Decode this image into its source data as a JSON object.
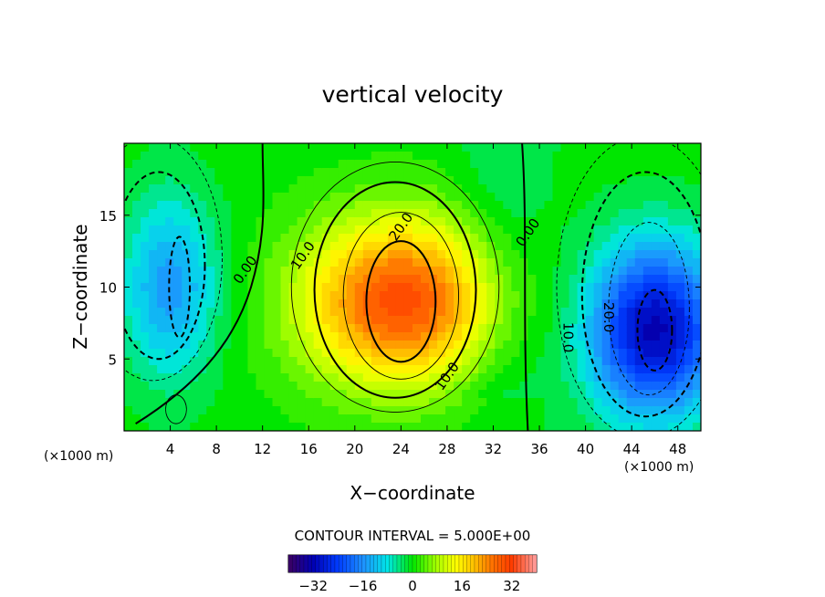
{
  "chart_data": {
    "type": "heatmap",
    "title": "vertical velocity",
    "xlabel": "X−coordinate",
    "ylabel": "Z−coordinate",
    "x_unit_left": "(×1000 m)",
    "x_unit_right": "(×1000 m)",
    "xlim": [
      0,
      50
    ],
    "ylim": [
      0,
      20
    ],
    "x_ticks": [
      4,
      8,
      12,
      16,
      20,
      24,
      28,
      32,
      36,
      40,
      44,
      48
    ],
    "y_ticks": [
      5,
      10,
      15
    ],
    "contour_interval_text": "CONTOUR INTERVAL = 5.000E+00",
    "colorbar": {
      "range": [
        -40,
        40
      ],
      "ticks": [
        -32,
        -16,
        0,
        16,
        32
      ],
      "tick_labels": [
        "−32",
        "−16",
        "0",
        "16",
        "32"
      ]
    },
    "features": [
      {
        "kind": "updraft",
        "center_x": 24,
        "center_z": 9,
        "peak": 30
      },
      {
        "kind": "downdraft",
        "center_x": 46,
        "center_z": 7,
        "peak": -32
      },
      {
        "kind": "downdraft",
        "center_x": 4,
        "center_z": 10,
        "peak": -15
      }
    ],
    "contour_labels": [
      {
        "text": "0.00",
        "x": 10.5,
        "z": 11.2
      },
      {
        "text": "10.0",
        "x": 15.5,
        "z": 12.2
      },
      {
        "text": "20.0",
        "x": 24.0,
        "z": 14.2
      },
      {
        "text": "10.0",
        "x": 28.0,
        "z": 3.8
      },
      {
        "text": "0.00",
        "x": 35.0,
        "z": 13.8
      },
      {
        "text": "10.0",
        "x": 38.5,
        "z": 6.5
      },
      {
        "text": "20.0",
        "x": 42.0,
        "z": 7.9
      }
    ]
  }
}
